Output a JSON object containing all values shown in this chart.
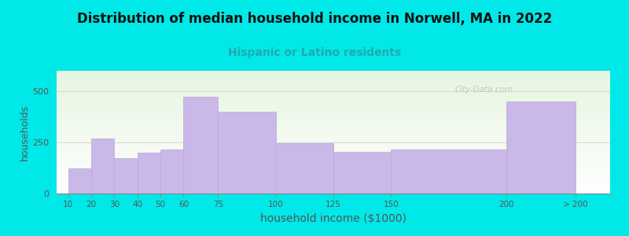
{
  "title": "Distribution of median household income in Norwell, MA in 2022",
  "subtitle": "Hispanic or Latino residents",
  "xlabel": "household income ($1000)",
  "ylabel": "households",
  "tick_labels": [
    "10",
    "20",
    "30",
    "40",
    "50",
    "60",
    "75",
    "100",
    "125",
    "150",
    "200",
    "> 200"
  ],
  "tick_positions": [
    10,
    20,
    30,
    40,
    50,
    60,
    75,
    100,
    125,
    150,
    200,
    230
  ],
  "bar_lefts": [
    10,
    20,
    30,
    40,
    50,
    60,
    75,
    100,
    125,
    150,
    200
  ],
  "bar_rights": [
    20,
    30,
    40,
    50,
    60,
    75,
    100,
    125,
    150,
    200,
    230
  ],
  "bar_values": [
    125,
    270,
    175,
    200,
    215,
    475,
    400,
    245,
    205,
    215,
    450
  ],
  "bar_color": "#c9b8e8",
  "bar_edge_color": "#b8a8d8",
  "background_outer": "#00e8e8",
  "plot_bg_top": "#e6f5e0",
  "plot_bg_bottom": "#ffffff",
  "title_color": "#111111",
  "subtitle_color": "#22aaaa",
  "axis_label_color": "#555555",
  "tick_color": "#555555",
  "ylim": [
    0,
    600
  ],
  "yticks": [
    0,
    250,
    500
  ],
  "watermark": "City-Data.com",
  "title_fontsize": 12,
  "subtitle_fontsize": 10,
  "xlabel_fontsize": 10,
  "ylabel_fontsize": 9,
  "xlim_left": 5,
  "xlim_right": 245
}
